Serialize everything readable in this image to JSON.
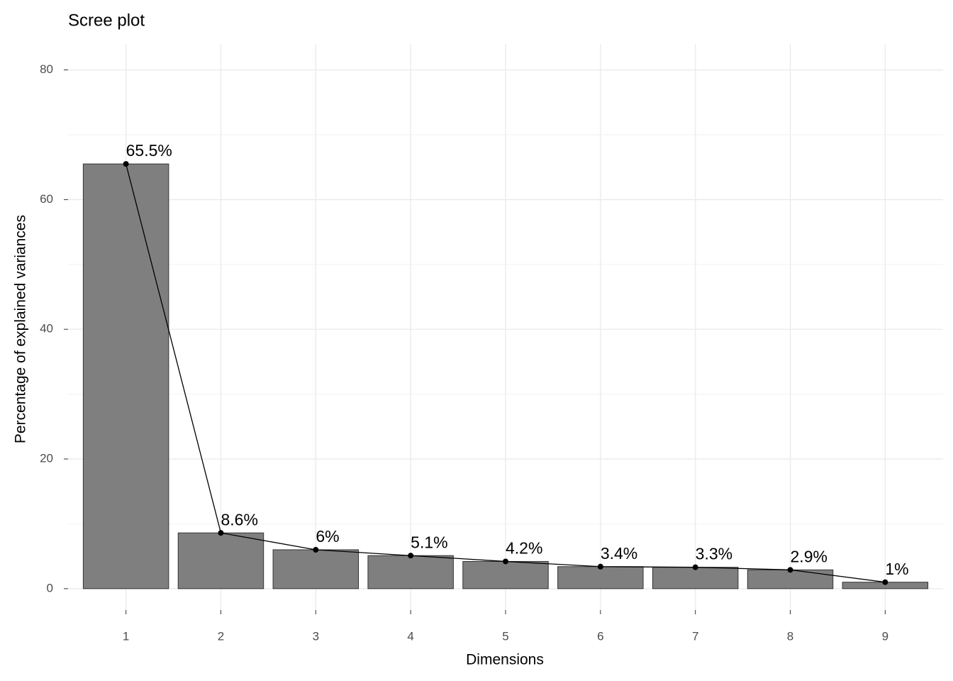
{
  "chart_data": {
    "type": "bar",
    "title": "Scree plot",
    "x_label": "Dimensions",
    "y_label": "Percentage of explained variances",
    "categories": [
      "1",
      "2",
      "3",
      "4",
      "5",
      "6",
      "7",
      "8",
      "9"
    ],
    "values": [
      65.5,
      8.6,
      6,
      5.1,
      4.2,
      3.4,
      3.3,
      2.9,
      1
    ],
    "value_labels": [
      "65.5%",
      "8.6%",
      "6%",
      "5.1%",
      "4.2%",
      "3.4%",
      "3.3%",
      "2.9%",
      "1%"
    ],
    "color": "#7f7f7f",
    "line_color": "#000000",
    "show_line": true,
    "ylim": [
      -3.3,
      84
    ],
    "yticks": [
      0,
      20,
      40,
      60,
      80
    ],
    "y_minor_ticks": [
      10,
      30,
      50,
      70
    ],
    "grid": true
  }
}
